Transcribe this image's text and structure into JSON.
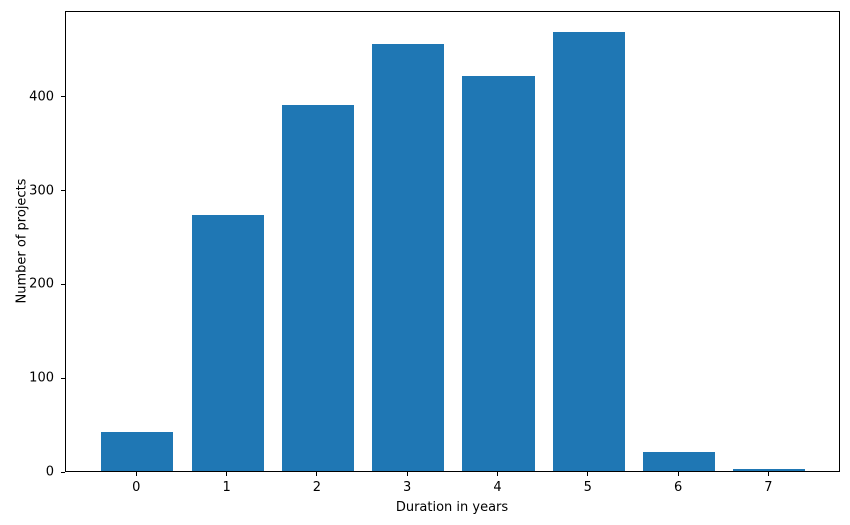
{
  "chart_data": {
    "type": "bar",
    "title": "",
    "xlabel": "Duration in years",
    "ylabel": "Number of projects",
    "categories": [
      "0",
      "1",
      "2",
      "3",
      "4",
      "5",
      "6",
      "7"
    ],
    "values": [
      42,
      273,
      390,
      455,
      421,
      468,
      20,
      2
    ],
    "yticks": [
      0,
      100,
      200,
      300,
      400
    ],
    "ylim": [
      0,
      491.4
    ],
    "bar_color": "#1f77b4",
    "axis_color": "#000000",
    "background_color": "#ffffff",
    "grid": false,
    "legend_position": "none"
  }
}
